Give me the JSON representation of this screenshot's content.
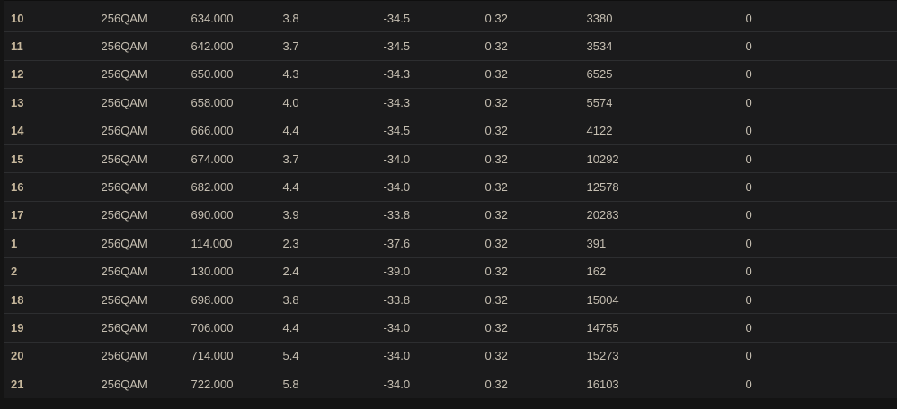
{
  "colors": {
    "page_bg": "#141414",
    "row_bg": "#1b1b1c",
    "border": "#2d2e30",
    "text": "#c5beb1",
    "channel_text": "#c6b79c"
  },
  "table": {
    "rows": [
      [
        "10",
        "256QAM",
        "634.000",
        "3.8",
        "-34.5",
        "0.32",
        "3380",
        "0"
      ],
      [
        "11",
        "256QAM",
        "642.000",
        "3.7",
        "-34.5",
        "0.32",
        "3534",
        "0"
      ],
      [
        "12",
        "256QAM",
        "650.000",
        "4.3",
        "-34.3",
        "0.32",
        "6525",
        "0"
      ],
      [
        "13",
        "256QAM",
        "658.000",
        "4.0",
        "-34.3",
        "0.32",
        "5574",
        "0"
      ],
      [
        "14",
        "256QAM",
        "666.000",
        "4.4",
        "-34.5",
        "0.32",
        "4122",
        "0"
      ],
      [
        "15",
        "256QAM",
        "674.000",
        "3.7",
        "-34.0",
        "0.32",
        "10292",
        "0"
      ],
      [
        "16",
        "256QAM",
        "682.000",
        "4.4",
        "-34.0",
        "0.32",
        "12578",
        "0"
      ],
      [
        "17",
        "256QAM",
        "690.000",
        "3.9",
        "-33.8",
        "0.32",
        "20283",
        "0"
      ],
      [
        "1",
        "256QAM",
        "114.000",
        "2.3",
        "-37.6",
        "0.32",
        "391",
        "0"
      ],
      [
        "2",
        "256QAM",
        "130.000",
        "2.4",
        "-39.0",
        "0.32",
        "162",
        "0"
      ],
      [
        "18",
        "256QAM",
        "698.000",
        "3.8",
        "-33.8",
        "0.32",
        "15004",
        "0"
      ],
      [
        "19",
        "256QAM",
        "706.000",
        "4.4",
        "-34.0",
        "0.32",
        "14755",
        "0"
      ],
      [
        "20",
        "256QAM",
        "714.000",
        "5.4",
        "-34.0",
        "0.32",
        "15273",
        "0"
      ],
      [
        "21",
        "256QAM",
        "722.000",
        "5.8",
        "-34.0",
        "0.32",
        "16103",
        "0"
      ]
    ]
  }
}
